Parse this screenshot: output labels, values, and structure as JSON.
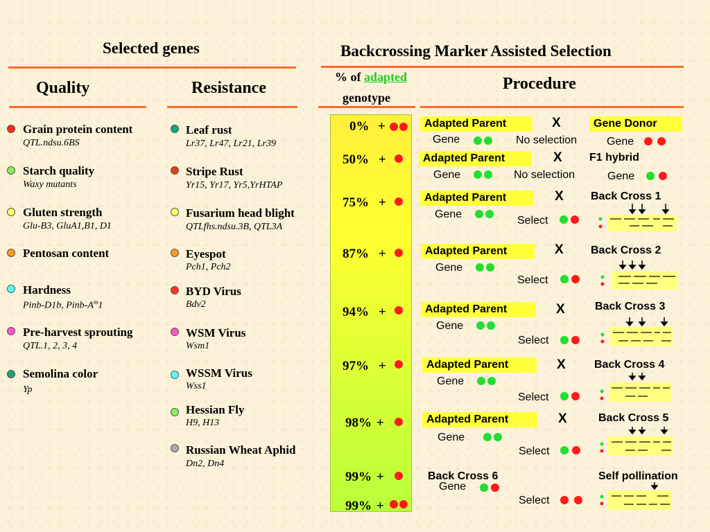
{
  "titles": {
    "left": "Selected genes",
    "right": "Backcrossing Marker Assisted Selection"
  },
  "headers": {
    "quality": "Quality",
    "resistance": "Resistance",
    "pct_of": "% of",
    "pct_adapted": "adapted",
    "pct_genotype": "genotype",
    "procedure": "Procedure"
  },
  "quality": [
    {
      "name": "Grain protein content",
      "detail": "QTL.ndsu.6BS",
      "color": "#ff2a1a"
    },
    {
      "name": "Starch quality",
      "detail": "Waxy mutants",
      "color": "#88ee55"
    },
    {
      "name": "Gluten strength",
      "detail": "Glu-B3, GluA1,B1, D1",
      "color": "#ffff66"
    },
    {
      "name": "Pentosan content",
      "detail": "",
      "color": "#ff9922"
    },
    {
      "name": "Hardness",
      "detail": "Pinb-D1b, Pinb-A",
      "detail_sup": "m",
      "detail_tail": "1",
      "color": "#55ffff"
    },
    {
      "name": "Pre-harvest sprouting",
      "detail": "QTL.1, 2, 3, 4",
      "color": "#ff55cc"
    },
    {
      "name": "Semolina color",
      "detail": "Yp",
      "color": "#11aa77"
    }
  ],
  "resistance": [
    {
      "name": "Leaf rust",
      "detail": "Lr37, Lr47, Lr21, Lr39",
      "color": "#11aa77"
    },
    {
      "name": "Stripe Rust",
      "detail": "Yr15, Yr17, Yr5,YrHTAP",
      "color": "#dd4411"
    },
    {
      "name": "Fusarium head blight",
      "detail": "QTLfhs.ndsu.3B, QTL3A",
      "color": "#ffff66"
    },
    {
      "name": "Eyespot",
      "detail": "Pch1, Pch2",
      "color": "#ff9922"
    },
    {
      "name": "BYD Virus",
      "detail": "Bdv2",
      "color": "#ff3322"
    },
    {
      "name": "WSM Virus",
      "detail": "Wsm1",
      "color": "#ff55cc"
    },
    {
      "name": "WSSM Virus",
      "detail": "Wss1",
      "color": "#55ffff"
    },
    {
      "name": "Hessian Fly",
      "detail": "H9, H13",
      "color": "#88ee55"
    },
    {
      "name": "Russian Wheat Aphid",
      "detail": "Dn2, Dn4",
      "color": "#aaaaaa"
    }
  ],
  "percent_rows": [
    {
      "value": "0%",
      "plus": "+",
      "dots": [
        "red",
        "red"
      ]
    },
    {
      "value": "50%",
      "plus": "+",
      "dots": [
        "red"
      ]
    },
    {
      "value": "75%",
      "plus": "+",
      "dots": [
        "red"
      ]
    },
    {
      "value": "87%",
      "plus": "+",
      "dots": [
        "red"
      ]
    },
    {
      "value": "94%",
      "plus": "+",
      "dots": [
        "red"
      ]
    },
    {
      "value": "97%",
      "plus": "+",
      "dots": [
        "red"
      ]
    },
    {
      "value": "98%",
      "plus": "+",
      "dots": [
        "red"
      ]
    },
    {
      "value": "99%",
      "plus": "+",
      "dots": [
        "red"
      ]
    },
    {
      "value": "99%",
      "plus": "+",
      "dots": [
        "red",
        "red"
      ]
    }
  ],
  "procedure": {
    "adapted_parent": "Adapted Parent",
    "cross": "X",
    "gene": "Gene",
    "select": "Select",
    "no_selection": "No selection",
    "gene_donor": "Gene Donor",
    "f1_hybrid": "F1 hybrid",
    "back_cross_1": "Back Cross 1",
    "back_cross_2": "Back Cross 2",
    "back_cross_3": "Back Cross 3",
    "back_cross_4": "Back Cross 4",
    "back_cross_5": "Back Cross 5",
    "back_cross_6": "Back Cross 6",
    "self_pollination": "Self pollination"
  },
  "colors": {
    "rule": "#ff6a2a",
    "highlight": "#ffff3a",
    "allele_red": "#ff1a1a",
    "allele_green": "#22dd33",
    "adapted_text": "#22cc22"
  }
}
